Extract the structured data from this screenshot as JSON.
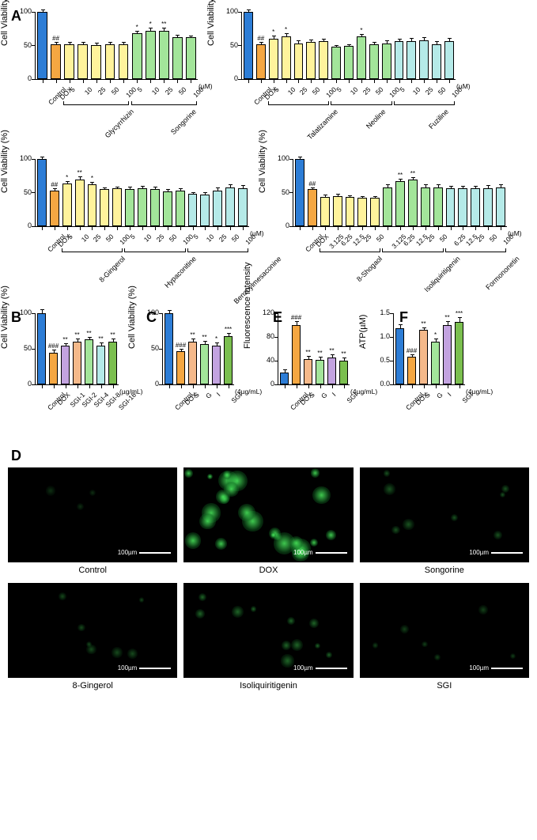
{
  "colors": {
    "control": "#2d7dd6",
    "dox": "#f5a742",
    "groups": [
      "#fff39c",
      "#a3e59a",
      "#b5eae8"
    ],
    "panel_bcef": [
      "#2d7dd6",
      "#f5a742",
      "#c3a3e0",
      "#f5b98a",
      "#a3e59a",
      "#b5eae8",
      "#7bbf4f"
    ],
    "border": "#000000",
    "grid": "#ffffff"
  },
  "panelA": {
    "ylabel": "Cell Viability (%)",
    "ymax": 100,
    "ytick_step": 50,
    "charts": [
      {
        "groups": [
          {
            "name": "Glycyrrhizin",
            "conc": [
              "5",
              "10",
              "25",
              "50",
              "100"
            ],
            "vals": [
              52,
              52,
              51,
              52,
              52
            ],
            "err": [
              2,
              2,
              2,
              2,
              2
            ],
            "sig": [
              "",
              "",
              "",
              "",
              ""
            ],
            "color": 0
          },
          {
            "name": "Songorine",
            "conc": [
              "5",
              "10",
              "25",
              "50",
              "100"
            ],
            "vals": [
              68,
              72,
              72,
              62,
              62
            ],
            "err": [
              3,
              3,
              3,
              3,
              2
            ],
            "sig": [
              "*",
              "*",
              "**",
              "",
              ""
            ],
            "color": 1
          }
        ],
        "control": 100,
        "control_err": 2,
        "dox": 52,
        "dox_err": 2,
        "dox_sig": "##",
        "unit": "(µM)"
      },
      {
        "groups": [
          {
            "name": "Talatizamine",
            "conc": [
              "5",
              "10",
              "25",
              "50",
              "100"
            ],
            "vals": [
              60,
              64,
              53,
              55,
              56
            ],
            "err": [
              3,
              3,
              3,
              3,
              3
            ],
            "sig": [
              "*",
              "*",
              "",
              "",
              ""
            ],
            "color": 0
          },
          {
            "name": "Neoline",
            "conc": [
              "5",
              "10",
              "25",
              "50",
              "100"
            ],
            "vals": [
              48,
              49,
              63,
              52,
              53
            ],
            "err": [
              2,
              2,
              3,
              2,
              3
            ],
            "sig": [
              "",
              "",
              "*",
              "",
              ""
            ],
            "color": 1
          },
          {
            "name": "Fuziline",
            "conc": [
              "5",
              "10",
              "25",
              "50",
              "100"
            ],
            "vals": [
              56,
              57,
              58,
              52,
              57
            ],
            "err": [
              3,
              3,
              3,
              3,
              3
            ],
            "sig": [
              "",
              "",
              "",
              "",
              ""
            ],
            "color": 2
          }
        ],
        "control": 100,
        "control_err": 2,
        "dox": 52,
        "dox_err": 2,
        "dox_sig": "##",
        "unit": "(µM)"
      },
      {
        "groups": [
          {
            "name": "8-Gingerol",
            "conc": [
              "5",
              "10",
              "25",
              "50",
              "100"
            ],
            "vals": [
              63,
              70,
              62,
              55,
              56
            ],
            "err": [
              3,
              3,
              3,
              2,
              2
            ],
            "sig": [
              "*",
              "**",
              "*",
              "",
              ""
            ],
            "color": 0
          },
          {
            "name": "Hypaconitine",
            "conc": [
              "5",
              "10",
              "25",
              "50",
              "100"
            ],
            "vals": [
              55,
              56,
              55,
              52,
              53
            ],
            "err": [
              3,
              3,
              3,
              2,
              2
            ],
            "sig": [
              "",
              "",
              "",
              "",
              ""
            ],
            "color": 1
          },
          {
            "name": "Benzoylmesaconine",
            "conc": [
              "5",
              "10",
              "25",
              "50",
              "100"
            ],
            "vals": [
              48,
              47,
              53,
              58,
              57
            ],
            "err": [
              2,
              2,
              3,
              3,
              3
            ],
            "sig": [
              "",
              "",
              "",
              "",
              ""
            ],
            "color": 2
          }
        ],
        "control": 100,
        "control_err": 2,
        "dox": 53,
        "dox_err": 2,
        "dox_sig": "##",
        "unit": "(µM)"
      },
      {
        "groups": [
          {
            "name": "8-Shogaol",
            "conc": [
              "3.125",
              "6.25",
              "12.5",
              "25",
              "50"
            ],
            "vals": [
              44,
              45,
              43,
              42,
              42
            ],
            "err": [
              2,
              2,
              2,
              2,
              2
            ],
            "sig": [
              "",
              "",
              "",
              "",
              ""
            ],
            "color": 0
          },
          {
            "name": "Isoliquiritigenin",
            "conc": [
              "3.125",
              "6.25",
              "12.5",
              "25",
              "50"
            ],
            "vals": [
              58,
              67,
              69,
              58,
              58
            ],
            "err": [
              3,
              3,
              3,
              3,
              3
            ],
            "sig": [
              "",
              "**",
              "**",
              "",
              ""
            ],
            "color": 1
          },
          {
            "name": "Formononetin",
            "conc": [
              "6.25",
              "12.5",
              "25",
              "50",
              "100"
            ],
            "vals": [
              56,
              56,
              56,
              57,
              58
            ],
            "err": [
              3,
              3,
              3,
              3,
              3
            ],
            "sig": [
              "",
              "",
              "",
              "",
              ""
            ],
            "color": 2
          }
        ],
        "control": 100,
        "control_err": 2,
        "dox": 55,
        "dox_err": 2,
        "dox_sig": "##",
        "unit": "(µM)"
      }
    ]
  },
  "panelB": {
    "ylabel": "Cell Viability (%)",
    "ymax": 100,
    "ytick_step": 50,
    "labels": [
      "Control",
      "DOX",
      "SGI-1",
      "SGI-2",
      "SGI-4",
      "SGI-8",
      "SGI-16"
    ],
    "vals": [
      100,
      45,
      54,
      60,
      63,
      55,
      60
    ],
    "err": [
      5,
      3,
      3,
      3,
      3,
      3,
      3
    ],
    "sig": [
      "",
      "###",
      "**",
      "**",
      "**",
      "**",
      "**"
    ],
    "unit": "(µg/mL)"
  },
  "panelC": {
    "ylabel": "Cell Viability (%)",
    "ymax": 100,
    "ytick_step": 50,
    "labels": [
      "Control",
      "DOX",
      "S",
      "G",
      "I",
      "SGI"
    ],
    "vals": [
      100,
      47,
      60,
      57,
      55,
      68
    ],
    "err": [
      3,
      2,
      3,
      3,
      3,
      3
    ],
    "sig": [
      "",
      "###",
      "**",
      "**",
      "*",
      "***"
    ],
    "unit": "(4µg/mL)"
  },
  "panelE": {
    "ylabel": "Fluorescence intensity",
    "ymax": 120,
    "ytick_step": 40,
    "labels": [
      "Control",
      "DOX",
      "S",
      "G",
      "I",
      "SGI"
    ],
    "vals": [
      20,
      100,
      43,
      42,
      46,
      40
    ],
    "err": [
      4,
      5,
      4,
      4,
      4,
      4
    ],
    "sig": [
      "",
      "###",
      "**",
      "**",
      "**",
      "**"
    ],
    "unit": "(4µg/mL)"
  },
  "panelF": {
    "ylabel": "ATP(µM)",
    "ymax": 1.5,
    "ytick_step": 0.5,
    "labels": [
      "Control",
      "DOX",
      "S",
      "G",
      "I",
      "SGI"
    ],
    "vals": [
      1.18,
      0.58,
      1.15,
      0.9,
      1.25,
      1.32
    ],
    "err": [
      0.07,
      0.04,
      0.04,
      0.05,
      0.07,
      0.08
    ],
    "sig": [
      "",
      "###",
      "**",
      "*",
      "**",
      "***"
    ],
    "unit": "(4µg/mL)"
  },
  "panelD": {
    "scale": "100µm",
    "images": [
      {
        "label": "Control",
        "intensity": 0.05
      },
      {
        "label": "DOX",
        "intensity": 0.9
      },
      {
        "label": "Songorine",
        "intensity": 0.25
      },
      {
        "label": "8-Gingerol",
        "intensity": 0.2
      },
      {
        "label": "Isoliquiritigenin",
        "intensity": 0.35
      },
      {
        "label": "SGI",
        "intensity": 0.15
      }
    ]
  }
}
